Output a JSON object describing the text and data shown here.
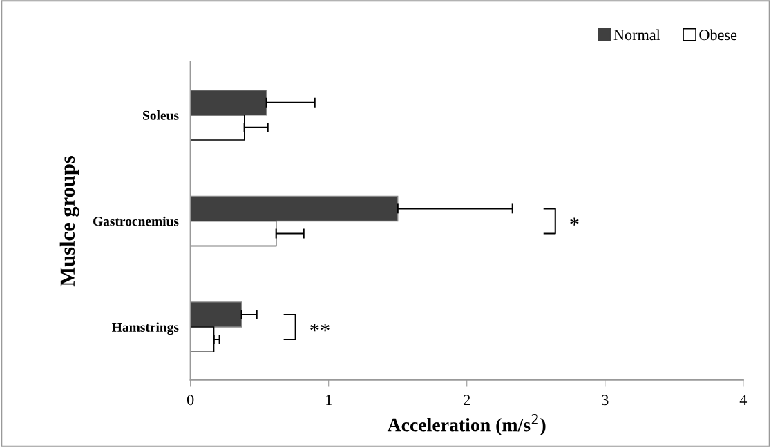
{
  "chart_data": {
    "type": "bar",
    "orientation": "horizontal",
    "xlabel": "Acceleration (m/s$^{2}$)",
    "ylabel": "Muslce groups",
    "categories": [
      "Soleus",
      "Gastrocnemius",
      "Hamstrings"
    ],
    "series": [
      {
        "name": "Normal",
        "color": "#404040",
        "values": [
          0.55,
          1.5,
          0.37
        ],
        "errors": [
          [
            0.55,
            0.9
          ],
          [
            1.5,
            2.33
          ],
          [
            0.37,
            0.48
          ]
        ]
      },
      {
        "name": "Obese",
        "color": "#ffffff",
        "values": [
          0.39,
          0.62,
          0.17
        ],
        "errors": [
          [
            0.39,
            0.56
          ],
          [
            0.62,
            0.82
          ],
          [
            0.17,
            0.21
          ]
        ]
      }
    ],
    "xlim": [
      0,
      4
    ],
    "xticks": [
      0,
      1,
      2,
      3,
      4
    ],
    "grid": false,
    "legend": "top right",
    "annotations": [
      "*",
      "**"
    ]
  }
}
